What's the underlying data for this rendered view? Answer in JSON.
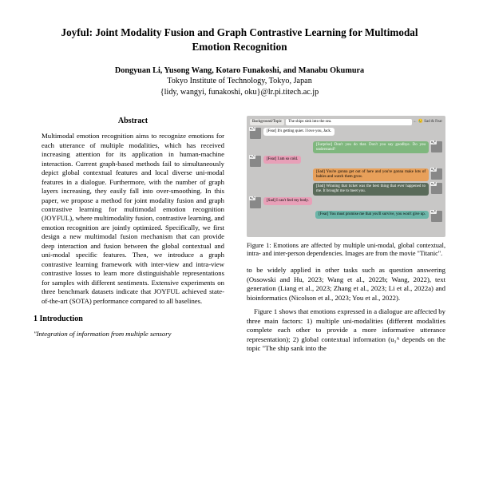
{
  "title": "Joyful: Joint Modality Fusion and Graph Contrastive Learning for Multimodal Emotion Recognition",
  "authors": "Dongyuan Li, Yusong Wang, Kotaro Funakoshi, and Manabu Okumura",
  "affiliation": "Tokyo Institute of Technology, Tokyo, Japan",
  "email": "{lidy, wangyi, funakoshi, oku}@lr.pi.titech.ac.jp",
  "abstract_head": "Abstract",
  "abstract_body": "Multimodal emotion recognition aims to recognize emotions for each utterance of multiple modalities, which has received increasing attention for its application in human-machine interaction. Current graph-based methods fail to simultaneously depict global contextual features and local diverse uni-modal features in a dialogue. Furthermore, with the number of graph layers increasing, they easily fall into over-smoothing. In this paper, we propose a method for joint modality fusion and graph contrastive learning for multimodal emotion recognition (JOYFUL), where multimodality fusion, contrastive learning, and emotion recognition are jointly optimized. Specifically, we first design a new multimodal fusion mechanism that can provide deep interaction and fusion between the global contextual and uni-modal specific features. Then, we introduce a graph contrastive learning framework with inter-view and intra-view contrastive losses to learn more distinguishable representations for samples with different sentiments. Extensive experiments on three benchmark datasets indicate that JOYFUL achieved state-of-the-art (SOTA) performance compared to all baselines.",
  "sec1_head": "1   Introduction",
  "intro_quote": "\"Integration of information from multiple sensory",
  "figure": {
    "topic_tag": "Background/Topic",
    "topic_text": "The ships sink into the sea.",
    "topic_emote": "← 😢 Sad & Fear",
    "lines": [
      {
        "side": "left",
        "av": "u₁ᴬ",
        "cls": "b-white",
        "text": "[Fear] It's getting quiet. I love you, Jack."
      },
      {
        "side": "right",
        "av": "u₂ᴮ",
        "cls": "b-green",
        "text": "[Surprise] Don't you do that. Don't you say goodbye. Do you understand?",
        "emo": ""
      },
      {
        "side": "left",
        "av": "u₃ᴬ",
        "cls": "b-pink",
        "text": "[Fear] I am so cold.",
        "emo": ""
      },
      {
        "side": "right",
        "av": "u₄ᴮ",
        "cls": "b-orange",
        "text": "[Sad] You're gonna get out of here and you're gonna make lots of babies and watch them grow.",
        "emo": ""
      },
      {
        "side": "right",
        "av": "u₅ᴮ",
        "cls": "b-dark",
        "text": "[Sad] Winning that ticket was the best thing that ever happened to me. It brought me to meet you.",
        "emo": ""
      },
      {
        "side": "left",
        "av": "u₆ᴬ",
        "cls": "b-pink",
        "text": "[Sad] I can't feel my body.",
        "emo": ""
      },
      {
        "side": "right",
        "av": "u₇ᴮ",
        "cls": "b-teal",
        "text": "[Fear] You must promise me that you'll survive, you won't give up.",
        "emo": ""
      }
    ]
  },
  "fig_caption": "Figure 1: Emotions are affected by multiple uni-modal, global contextual, intra- and inter-person dependencies. Images are from the movie \"Titanic\".",
  "right_p1": "to be widely applied in other tasks such as question answering (Ossowski and Hu, 2023; Wang et al., 2022b; Wang, 2022), text generation (Liang et al., 2023; Zhang et al., 2023; Li et al., 2022a) and bioinformatics (Nicolson et al., 2023; You et al., 2022).",
  "right_p2": "Figure 1 shows that emotions expressed in a dialogue are affected by three main factors: 1) multiple uni-modalities (different modalities complete each other to provide a more informative utterance representation); 2) global contextual information (u₃ᴬ depends on the topic \"The ship sank into the"
}
